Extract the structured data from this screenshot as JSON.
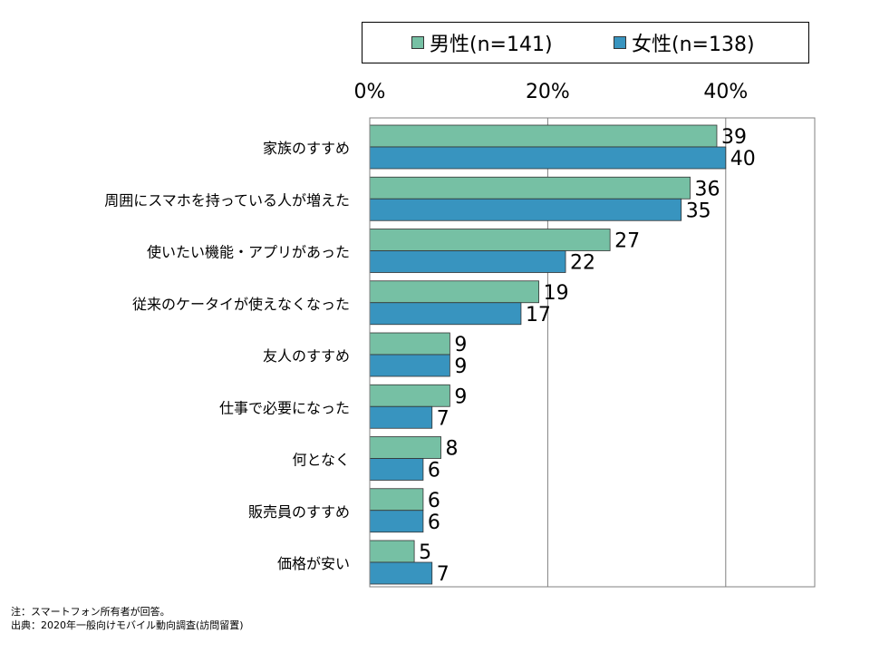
{
  "chart_data": {
    "type": "bar",
    "orientation": "horizontal",
    "categories": [
      "家族のすすめ",
      "周囲にスマホを持っている人が増えた",
      "使いたい機能・アプリがあった",
      "従来のケータイが使えなくなった",
      "友人のすすめ",
      "仕事で必要になった",
      "何となく",
      "販売員のすすめ",
      "価格が安い"
    ],
    "series": [
      {
        "name": "男性(n=141)",
        "color": "#76c0a4",
        "values": [
          39,
          36,
          27,
          19,
          9,
          9,
          8,
          6,
          5
        ]
      },
      {
        "name": "女性(n=138)",
        "color": "#3894bf",
        "values": [
          40,
          35,
          22,
          17,
          9,
          7,
          6,
          6,
          7
        ]
      }
    ],
    "xlim": [
      0,
      50
    ],
    "xticks": [
      0,
      20,
      40
    ],
    "xtick_labels": [
      "0%",
      "20%",
      "40%"
    ],
    "grid": true,
    "legend_position": "top"
  },
  "notes": [
    "注：スマートフォン所有者が回答。",
    "出典：2020年一般向けモバイル動向調査(訪問留置)"
  ]
}
